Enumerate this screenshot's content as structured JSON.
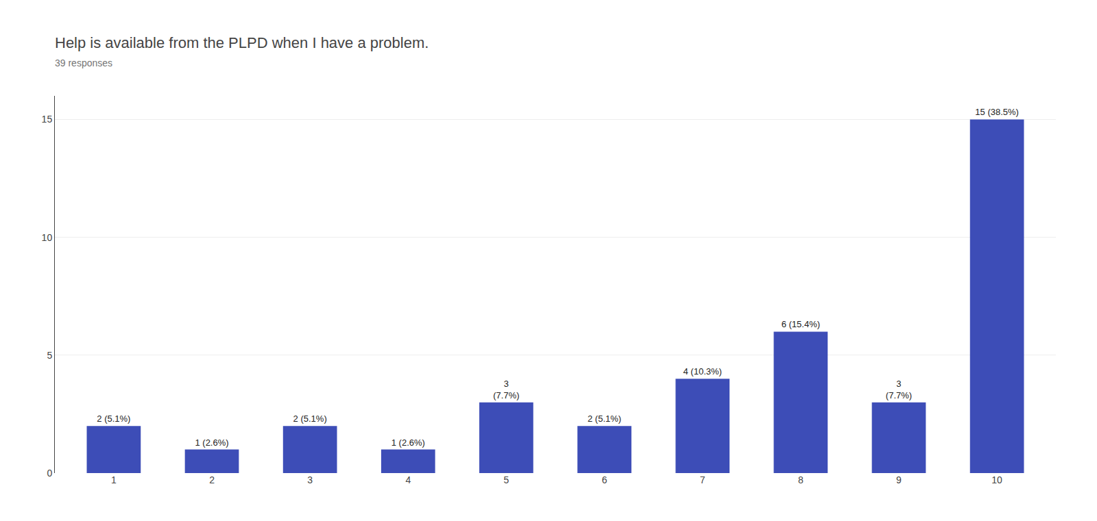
{
  "chart_data": {
    "type": "bar",
    "title": "Help is available from the PLPD when I have a problem.",
    "subtitle": "39 responses",
    "categories": [
      1,
      2,
      3,
      4,
      5,
      6,
      7,
      8,
      9,
      10
    ],
    "values": [
      2,
      1,
      2,
      1,
      3,
      2,
      4,
      6,
      3,
      15
    ],
    "value_labels": [
      "2 (5.1%)",
      "1 (2.6%)",
      "2 (5.1%)",
      "1 (2.6%)",
      "3\n(7.7%)",
      "2 (5.1%)",
      "4 (10.3%)",
      "6 (15.4%)",
      "3\n(7.7%)",
      "15 (38.5%)"
    ],
    "color": "#3d4db7",
    "ylim": [
      0,
      16
    ],
    "yticks": [
      0,
      5,
      10,
      15
    ],
    "grid": true,
    "data_labels": true
  }
}
